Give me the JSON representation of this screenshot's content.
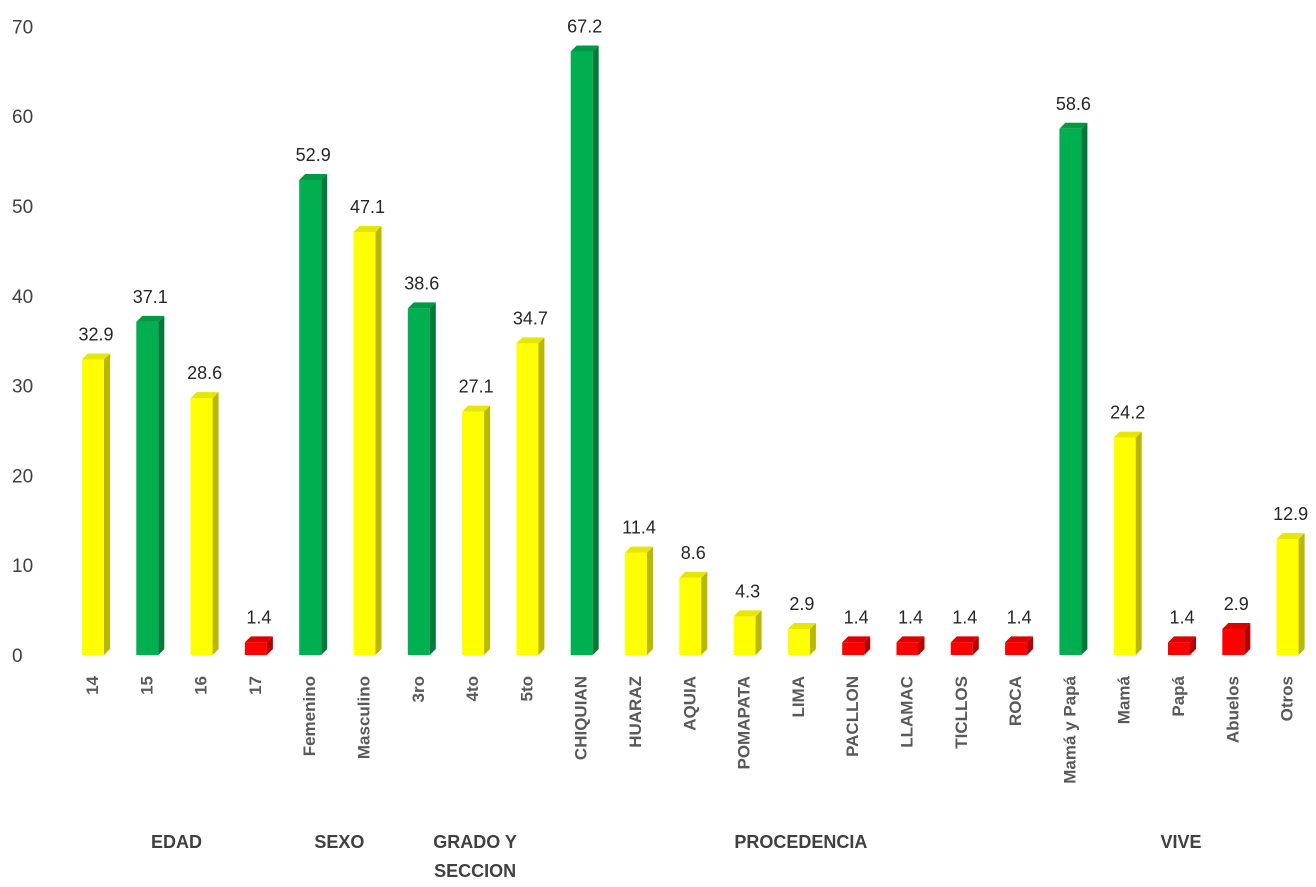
{
  "chart_data": {
    "type": "bar",
    "title": "",
    "xlabel": "",
    "ylabel": "",
    "ylim": [
      0,
      70
    ],
    "yticks": [
      0,
      10,
      20,
      30,
      40,
      50,
      60,
      70
    ],
    "grid": false,
    "legend": "none",
    "style": "3d-column",
    "categories": [
      "14",
      "15",
      "16",
      "17",
      "Femenino",
      "Masculino",
      "3ro",
      "4to",
      "5to",
      "CHIQUIAN",
      "HUARAZ",
      "AQUIA",
      "POMAPATA",
      "LIMA",
      "PACLLON",
      "LLAMAC",
      "TICLLOS",
      "ROCA",
      "Mamá y Papá",
      "Mamá",
      "Papá",
      "Abuelos",
      "Otros"
    ],
    "values": [
      32.9,
      37.1,
      28.6,
      1.4,
      52.9,
      47.1,
      38.6,
      27.1,
      34.7,
      67.2,
      11.4,
      8.6,
      4.3,
      2.9,
      1.4,
      1.4,
      1.4,
      1.4,
      58.6,
      24.2,
      1.4,
      2.9,
      12.9
    ],
    "data_labels": [
      "32.9",
      "37.1",
      "28.6",
      "1.4",
      "52.9",
      "47.1",
      "38.6",
      "27.1",
      "34.7",
      "67.2",
      "11.4",
      "8.6",
      "4.3",
      "2.9",
      "1.4",
      "1.4",
      "1.4",
      "1.4",
      "58.6",
      "24.2",
      "1.4",
      "2.9",
      "12.9"
    ],
    "bar_colors": [
      "yellow",
      "green",
      "yellow",
      "red",
      "green",
      "yellow",
      "green",
      "yellow",
      "yellow",
      "green",
      "yellow",
      "yellow",
      "yellow",
      "yellow",
      "red",
      "red",
      "red",
      "red",
      "green",
      "yellow",
      "red",
      "red",
      "yellow"
    ],
    "groups": [
      {
        "label": "EDAD",
        "categories": [
          "14",
          "15",
          "16",
          "17"
        ]
      },
      {
        "label": "SEXO",
        "categories": [
          "Femenino",
          "Masculino"
        ]
      },
      {
        "label": "GRADO Y SECCION",
        "categories": [
          "3ro",
          "4to",
          "5to"
        ]
      },
      {
        "label": "PROCEDENCIA",
        "categories": [
          "CHIQUIAN",
          "HUARAZ",
          "AQUIA",
          "POMAPATA",
          "LIMA",
          "PACLLON",
          "LLAMAC",
          "TICLLOS",
          "ROCA"
        ]
      },
      {
        "label": "VIVE",
        "categories": [
          "Mamá y Papá",
          "Mamá",
          "Papá",
          "Abuelos",
          "Otros"
        ]
      }
    ]
  },
  "colors": {
    "yellow": {
      "front": "#ffff00",
      "side": "#b8b800",
      "top": "#e6e600"
    },
    "green": {
      "front": "#00b050",
      "side": "#007a38",
      "top": "#009944"
    },
    "red": {
      "front": "#ff0000",
      "side": "#b00000",
      "top": "#dd0000"
    },
    "axis_text": "#404040"
  }
}
